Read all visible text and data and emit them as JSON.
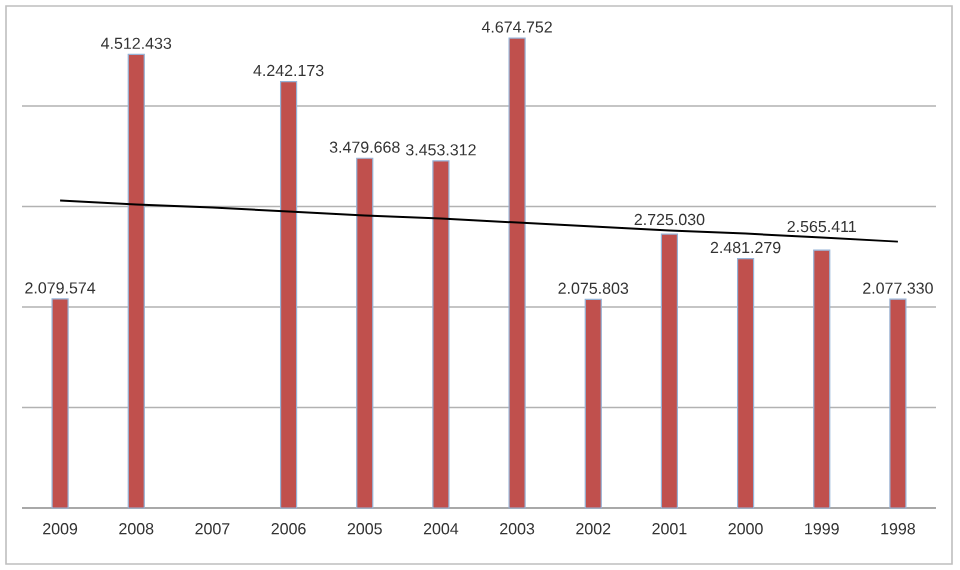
{
  "chart_data": {
    "type": "bar",
    "categories": [
      "2009",
      "2008",
      "2007",
      "2006",
      "2005",
      "2004",
      "2003",
      "2002",
      "2001",
      "2000",
      "1999",
      "1998"
    ],
    "series": [
      {
        "color": "#c0504d",
        "values": [
          2079574,
          4512433,
          null,
          4242173,
          3479668,
          3453312,
          4674752,
          2075803,
          2725030,
          2481279,
          2565411,
          2077330
        ],
        "value_labels": [
          "2.079.574",
          "4.512.433",
          null,
          "4.242.173",
          "3.479.668",
          "3.453.312",
          "4.674.752",
          "2.075.803",
          "2.725.030",
          "2.481.279",
          "2.565.411",
          "2.077.330"
        ]
      },
      {
        "type": "line",
        "color": "#000000",
        "values": [
          3060000,
          3020000,
          2990000,
          2950000,
          2910000,
          2880000,
          2840000,
          2800000,
          2760000,
          2730000,
          2690000,
          2650000
        ]
      }
    ],
    "grid": "y",
    "tick_labels": "x"
  }
}
